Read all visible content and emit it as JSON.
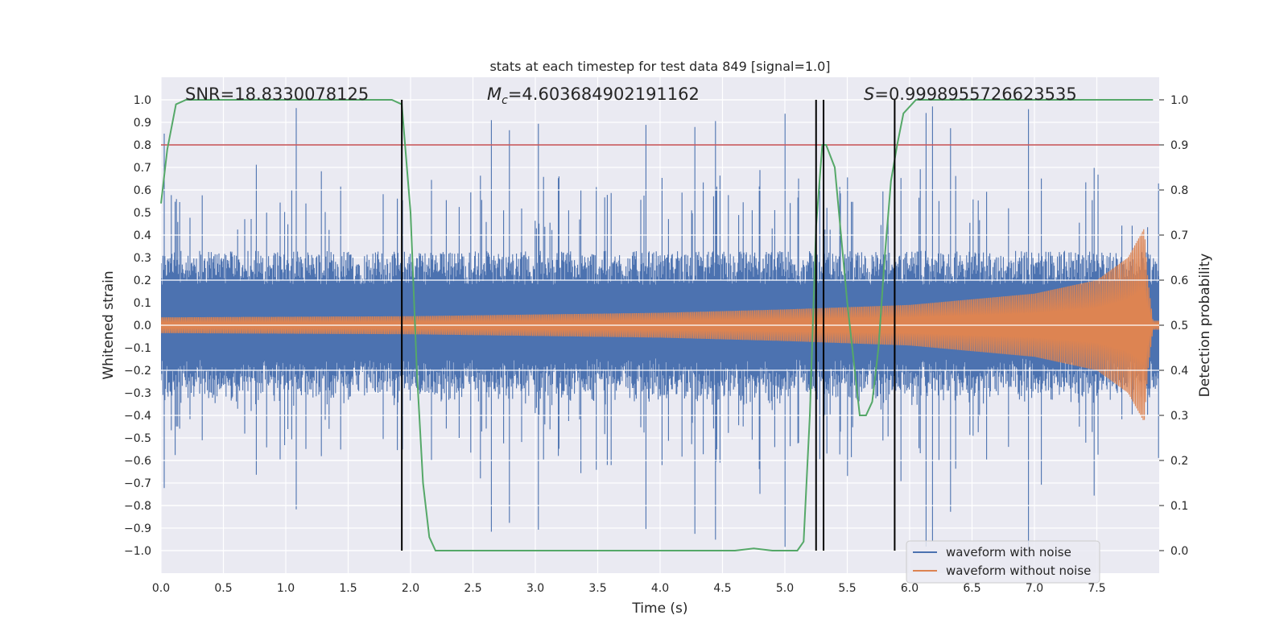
{
  "chart_data": {
    "type": "line",
    "title": "stats at each timestep for test data 849 [signal=1.0]",
    "xlabel": "Time (s)",
    "ylabel": "Whitened strain",
    "y2label": "Detection probability",
    "xlim": [
      0.0,
      8.0
    ],
    "ylim": [
      -1.1,
      1.1
    ],
    "y2lim": [
      -0.05,
      1.05
    ],
    "x_ticks": [
      0.0,
      0.5,
      1.0,
      1.5,
      2.0,
      2.5,
      3.0,
      3.5,
      4.0,
      4.5,
      5.0,
      5.5,
      6.0,
      6.5,
      7.0,
      7.5
    ],
    "x_tick_labels": [
      "0.0",
      "0.5",
      "1.0",
      "1.5",
      "2.0",
      "2.5",
      "3.0",
      "3.5",
      "4.0",
      "4.5",
      "5.0",
      "5.5",
      "6.0",
      "6.5",
      "7.0",
      "7.5"
    ],
    "y_ticks": [
      1.0,
      0.9,
      0.8,
      0.7,
      0.6,
      0.5,
      0.4,
      0.3,
      0.2,
      0.1,
      0.0,
      -0.1,
      -0.2,
      -0.3,
      -0.4,
      -0.5,
      -0.6,
      -0.7,
      -0.8,
      -0.9,
      -1.0
    ],
    "y_tick_labels": [
      "1.0",
      "0.9",
      "0.8",
      "0.7",
      "0.6",
      "0.5",
      "0.4",
      "0.3",
      "0.2",
      "0.1",
      "0.0",
      "−0.1",
      "−0.2",
      "−0.3",
      "−0.4",
      "−0.5",
      "−0.6",
      "−0.7",
      "−0.8",
      "−0.9",
      "−1.0"
    ],
    "y2_ticks": [
      1.0,
      0.9,
      0.8,
      0.7,
      0.6,
      0.5,
      0.4,
      0.3,
      0.2,
      0.1,
      0.0
    ],
    "y2_tick_labels": [
      "1.0",
      "0.9",
      "0.8",
      "0.7",
      "0.6",
      "0.5",
      "0.4",
      "0.3",
      "0.2",
      "0.1",
      "0.0"
    ],
    "annotations": {
      "snr": "SNR=18.8330078125",
      "mc_symbol": "M",
      "mc_subscript": "c",
      "mc_value": "=4.603684902191162",
      "s_symbol": "S",
      "s_value": "=0.9998955726623535"
    },
    "threshold": {
      "axis": "y2",
      "value": 0.9,
      "color": "#c44e52"
    },
    "vlines": [
      1.93,
      5.25,
      5.31,
      5.88
    ],
    "vline_range_y2": [
      0.0,
      1.0
    ],
    "series": [
      {
        "name": "waveform with noise",
        "color": "#4c72b0",
        "axis": "y",
        "kind": "noisy_strain",
        "x_range": [
          0.0,
          8.0
        ],
        "noise_core_amplitude": 0.3,
        "noise_peak_amplitude": 1.0
      },
      {
        "name": "waveform without noise",
        "color": "#dd8452",
        "axis": "y",
        "kind": "chirp",
        "x_range": [
          0.0,
          8.0
        ],
        "envelope": [
          [
            0.0,
            0.035
          ],
          [
            2.0,
            0.04
          ],
          [
            4.0,
            0.055
          ],
          [
            5.0,
            0.07
          ],
          [
            6.0,
            0.09
          ],
          [
            7.0,
            0.14
          ],
          [
            7.5,
            0.2
          ],
          [
            7.75,
            0.3
          ],
          [
            7.85,
            0.4
          ],
          [
            7.88,
            0.43
          ],
          [
            7.91,
            0.2
          ],
          [
            7.95,
            0.02
          ]
        ]
      },
      {
        "name": "detection probability",
        "color": "#55a868",
        "axis": "y2",
        "x": [
          0.0,
          0.05,
          0.12,
          0.2,
          0.5,
          1.0,
          1.5,
          1.85,
          1.93,
          2.0,
          2.05,
          2.1,
          2.15,
          2.2,
          2.3,
          3.0,
          4.0,
          4.6,
          4.75,
          4.9,
          5.0,
          5.1,
          5.15,
          5.2,
          5.25,
          5.3,
          5.33,
          5.4,
          5.5,
          5.6,
          5.65,
          5.7,
          5.75,
          5.8,
          5.85,
          5.9,
          5.95,
          6.05,
          6.5,
          7.0,
          7.5,
          7.95
        ],
        "y": [
          0.77,
          0.89,
          0.99,
          1.0,
          1.0,
          1.0,
          1.0,
          1.0,
          0.99,
          0.75,
          0.4,
          0.15,
          0.03,
          0.0,
          0.0,
          0.0,
          0.0,
          0.0,
          0.005,
          0.0,
          0.0,
          0.0,
          0.02,
          0.3,
          0.72,
          0.9,
          0.9,
          0.85,
          0.55,
          0.3,
          0.3,
          0.33,
          0.45,
          0.65,
          0.82,
          0.9,
          0.97,
          1.0,
          1.0,
          1.0,
          1.0,
          1.0
        ]
      }
    ],
    "legend": {
      "position": "lower-right",
      "entries": [
        {
          "label": "waveform with noise",
          "color": "#4c72b0"
        },
        {
          "label": "waveform without noise",
          "color": "#dd8452"
        }
      ]
    }
  }
}
